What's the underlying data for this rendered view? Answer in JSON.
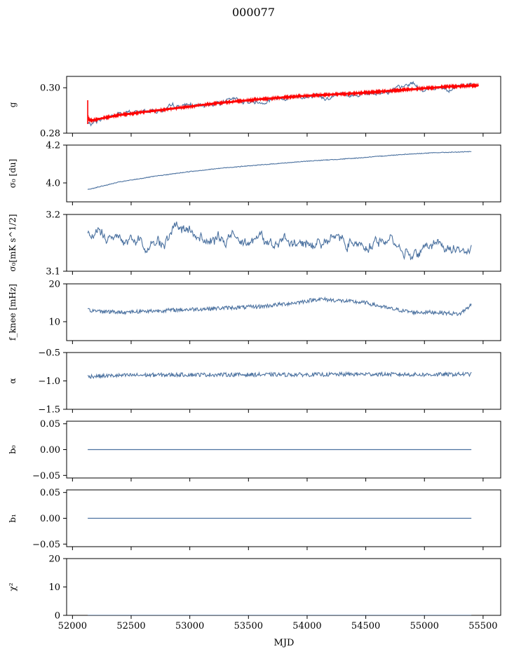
{
  "figure": {
    "title": "000077",
    "xlabel": "MJD"
  },
  "chart_data": [
    {
      "id": "g",
      "type": "line",
      "ylabel": "g",
      "xlim": [
        51950,
        55650
      ],
      "ylim": [
        0.28,
        0.305
      ],
      "yticks": [
        0.28,
        0.3
      ],
      "ytick_labels": [
        "0.28",
        "0.30"
      ],
      "series": [
        {
          "color": "#4c72a0",
          "noise": "rough",
          "x": [
            52130,
            52150,
            52200,
            52400,
            52600,
            52800,
            53000,
            53100,
            53200,
            53400,
            53600,
            53700,
            53900,
            54100,
            54300,
            54500,
            54700,
            54800,
            54900,
            55000,
            55100,
            55200,
            55300,
            55400
          ],
          "y": [
            0.2845,
            0.2835,
            0.2855,
            0.2885,
            0.2895,
            0.2905,
            0.2925,
            0.2915,
            0.2935,
            0.2945,
            0.2935,
            0.2955,
            0.2965,
            0.295,
            0.2975,
            0.297,
            0.299,
            0.2995,
            0.302,
            0.2985,
            0.3005,
            0.2995,
            0.3015,
            0.3005
          ]
        },
        {
          "color": "#ff0000",
          "noise": "band",
          "x": [
            52130,
            52150,
            52400,
            52800,
            53200,
            53600,
            54000,
            54400,
            54800,
            55200,
            55460
          ],
          "y": [
            0.287,
            0.2855,
            0.288,
            0.2905,
            0.293,
            0.295,
            0.2965,
            0.2975,
            0.299,
            0.3005,
            0.301
          ]
        }
      ]
    },
    {
      "id": "sigma0_du",
      "type": "line",
      "ylabel": "σ₀ [du]",
      "xlim": [
        51950,
        55650
      ],
      "ylim": [
        3.9,
        4.2
      ],
      "yticks": [
        4.0,
        4.2
      ],
      "ytick_labels": [
        "4.0",
        "4.2"
      ],
      "series": [
        {
          "color": "#4c72a0",
          "noise": "fine",
          "x": [
            52130,
            52400,
            52700,
            53000,
            53300,
            53600,
            54000,
            54400,
            54800,
            55100,
            55400
          ],
          "y": [
            3.965,
            4.005,
            4.035,
            4.06,
            4.08,
            4.095,
            4.115,
            4.13,
            4.15,
            4.16,
            4.165
          ]
        }
      ]
    },
    {
      "id": "sigma0_mks",
      "type": "line",
      "ylabel": "σ₀[mK s^1/2]",
      "xlim": [
        51950,
        55650
      ],
      "ylim": [
        3.1,
        3.2
      ],
      "yticks": [
        3.1,
        3.2
      ],
      "ytick_labels": [
        "3.1",
        "3.2"
      ],
      "series": [
        {
          "color": "#4c72a0",
          "noise": "wild",
          "x": [
            52130,
            52400,
            52700,
            52900,
            53200,
            53500,
            53700,
            54000,
            54200,
            54500,
            54700,
            54900,
            55100,
            55400
          ],
          "y": [
            3.17,
            3.155,
            3.145,
            3.175,
            3.15,
            3.165,
            3.15,
            3.145,
            3.16,
            3.15,
            3.155,
            3.13,
            3.15,
            3.135
          ]
        }
      ]
    },
    {
      "id": "fknee",
      "type": "line",
      "ylabel": "f_knee [mHz]",
      "xlim": [
        51950,
        55650
      ],
      "ylim": [
        5,
        20
      ],
      "yticks": [
        10,
        20
      ],
      "ytick_labels": [
        "10",
        "20"
      ],
      "series": [
        {
          "color": "#4c72a0",
          "noise": "mid",
          "x": [
            52130,
            52400,
            52800,
            53200,
            53600,
            53900,
            54100,
            54300,
            54500,
            54700,
            54900,
            55100,
            55300,
            55400
          ],
          "y": [
            13.0,
            12.5,
            13.0,
            13.5,
            14.0,
            15.0,
            16.0,
            15.5,
            15.0,
            13.5,
            12.5,
            12.5,
            12.0,
            14.5
          ]
        }
      ]
    },
    {
      "id": "alpha",
      "type": "line",
      "ylabel": "α",
      "xlim": [
        51950,
        55650
      ],
      "ylim": [
        -1.5,
        -0.5
      ],
      "yticks": [
        -1.5,
        -1.0,
        -0.5
      ],
      "ytick_labels": [
        "−1.5",
        "−1.0",
        "−0.5"
      ],
      "series": [
        {
          "color": "#4c72a0",
          "noise": "mid",
          "x": [
            52130,
            52500,
            53000,
            53500,
            54000,
            54500,
            55000,
            55400
          ],
          "y": [
            -0.92,
            -0.9,
            -0.89,
            -0.89,
            -0.89,
            -0.88,
            -0.89,
            -0.88
          ]
        }
      ]
    },
    {
      "id": "b0",
      "type": "line",
      "ylabel": "b₀",
      "xlim": [
        51950,
        55650
      ],
      "ylim": [
        -0.055,
        0.055
      ],
      "yticks": [
        -0.05,
        0.0,
        0.05
      ],
      "ytick_labels": [
        "−0.05",
        "0.00",
        "0.05"
      ],
      "series": [
        {
          "color": "#4c72a0",
          "noise": "none",
          "x": [
            52130,
            55400
          ],
          "y": [
            0,
            0
          ]
        }
      ]
    },
    {
      "id": "b1",
      "type": "line",
      "ylabel": "b₁",
      "xlim": [
        51950,
        55650
      ],
      "ylim": [
        -0.055,
        0.055
      ],
      "yticks": [
        -0.05,
        0.0,
        0.05
      ],
      "ytick_labels": [
        "−0.05",
        "0.00",
        "0.05"
      ],
      "series": [
        {
          "color": "#4c72a0",
          "noise": "none",
          "x": [
            52130,
            55400
          ],
          "y": [
            0,
            0
          ]
        }
      ]
    },
    {
      "id": "chi2",
      "type": "line",
      "ylabel": "χ²",
      "xlim": [
        51950,
        55650
      ],
      "ylim": [
        0,
        20
      ],
      "yticks": [
        0,
        10,
        20
      ],
      "ytick_labels": [
        "0",
        "10",
        "20"
      ],
      "xticks": [
        52000,
        52500,
        53000,
        53500,
        54000,
        54500,
        55000,
        55500
      ],
      "xtick_labels": [
        "52000",
        "52500",
        "53000",
        "53500",
        "54000",
        "54500",
        "55000",
        "55500"
      ],
      "series": [
        {
          "color": "#4c72a0",
          "noise": "none",
          "x": [
            52130,
            55400
          ],
          "y": [
            0,
            0
          ]
        }
      ]
    }
  ]
}
